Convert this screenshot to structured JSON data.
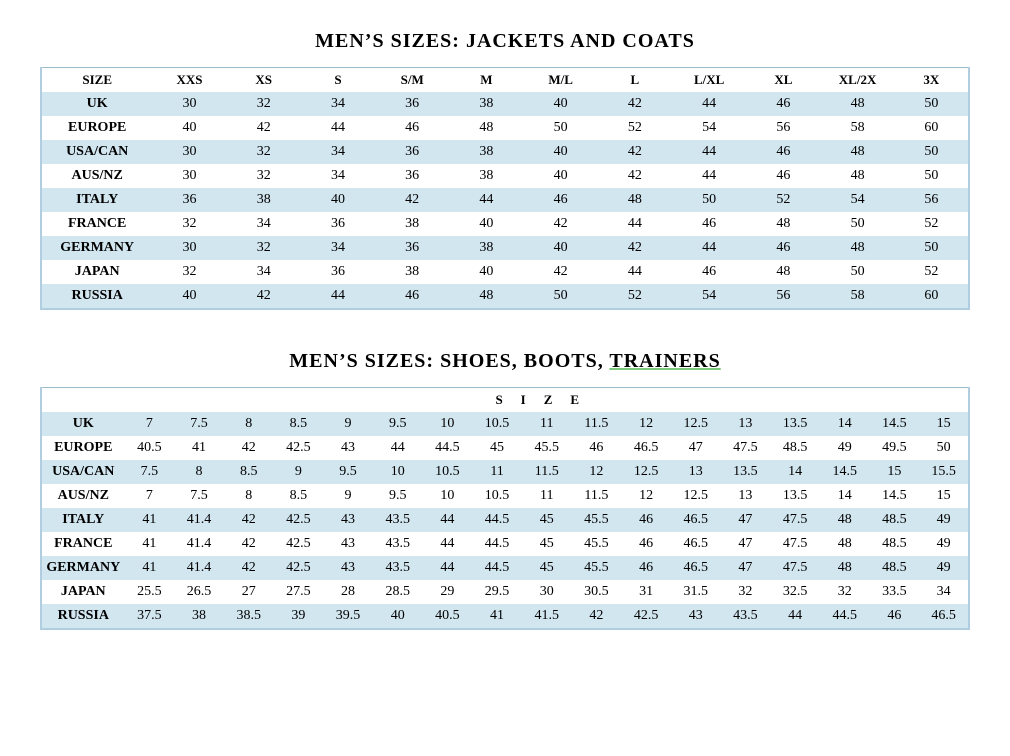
{
  "colors": {
    "stripe": "#d2e6f0",
    "border": "#b0cee0",
    "text": "#000000",
    "background": "#ffffff",
    "underline": "#7cc97c"
  },
  "tables": [
    {
      "title": "MEN’S SIZES: JACKETS AND COATS",
      "underline_from_word": null,
      "header_style": "row",
      "columns": [
        "SIZE",
        "XXS",
        "XS",
        "S",
        "S/M",
        "M",
        "M/L",
        "L",
        "L/XL",
        "XL",
        "XL/2X",
        "3X"
      ],
      "label_width": "12%",
      "rows": [
        {
          "label": "UK",
          "values": [
            "30",
            "32",
            "34",
            "36",
            "38",
            "40",
            "42",
            "44",
            "46",
            "48",
            "50"
          ]
        },
        {
          "label": "EUROPE",
          "values": [
            "40",
            "42",
            "44",
            "46",
            "48",
            "50",
            "52",
            "54",
            "56",
            "58",
            "60"
          ]
        },
        {
          "label": "USA/CAN",
          "values": [
            "30",
            "32",
            "34",
            "36",
            "38",
            "40",
            "42",
            "44",
            "46",
            "48",
            "50"
          ]
        },
        {
          "label": "AUS/NZ",
          "values": [
            "30",
            "32",
            "34",
            "36",
            "38",
            "40",
            "42",
            "44",
            "46",
            "48",
            "50"
          ]
        },
        {
          "label": "ITALY",
          "values": [
            "36",
            "38",
            "40",
            "42",
            "44",
            "46",
            "48",
            "50",
            "52",
            "54",
            "56"
          ]
        },
        {
          "label": "FRANCE",
          "values": [
            "32",
            "34",
            "36",
            "38",
            "40",
            "42",
            "44",
            "46",
            "48",
            "50",
            "52"
          ]
        },
        {
          "label": "GERMANY",
          "values": [
            "30",
            "32",
            "34",
            "36",
            "38",
            "40",
            "42",
            "44",
            "46",
            "48",
            "50"
          ]
        },
        {
          "label": "JAPAN",
          "values": [
            "32",
            "34",
            "36",
            "38",
            "40",
            "42",
            "44",
            "46",
            "48",
            "50",
            "52"
          ]
        },
        {
          "label": "RUSSIA",
          "values": [
            "40",
            "42",
            "44",
            "46",
            "48",
            "50",
            "52",
            "54",
            "56",
            "58",
            "60"
          ]
        }
      ]
    },
    {
      "title": "MEN’S SIZES: SHOES, BOOTS, TRAINERS",
      "underline_from_word": "TRAINERS",
      "header_style": "spanned",
      "span_header_text": "SIZE",
      "columns_count": 17,
      "label_width": "9%",
      "rows": [
        {
          "label": "UK",
          "values": [
            "7",
            "7.5",
            "8",
            "8.5",
            "9",
            "9.5",
            "10",
            "10.5",
            "11",
            "11.5",
            "12",
            "12.5",
            "13",
            "13.5",
            "14",
            "14.5",
            "15"
          ]
        },
        {
          "label": "EUROPE",
          "values": [
            "40.5",
            "41",
            "42",
            "42.5",
            "43",
            "44",
            "44.5",
            "45",
            "45.5",
            "46",
            "46.5",
            "47",
            "47.5",
            "48.5",
            "49",
            "49.5",
            "50"
          ]
        },
        {
          "label": "USA/CAN",
          "values": [
            "7.5",
            "8",
            "8.5",
            "9",
            "9.5",
            "10",
            "10.5",
            "11",
            "11.5",
            "12",
            "12.5",
            "13",
            "13.5",
            "14",
            "14.5",
            "15",
            "15.5"
          ]
        },
        {
          "label": "AUS/NZ",
          "values": [
            "7",
            "7.5",
            "8",
            "8.5",
            "9",
            "9.5",
            "10",
            "10.5",
            "11",
            "11.5",
            "12",
            "12.5",
            "13",
            "13.5",
            "14",
            "14.5",
            "15"
          ]
        },
        {
          "label": "ITALY",
          "values": [
            "41",
            "41.4",
            "42",
            "42.5",
            "43",
            "43.5",
            "44",
            "44.5",
            "45",
            "45.5",
            "46",
            "46.5",
            "47",
            "47.5",
            "48",
            "48.5",
            "49"
          ]
        },
        {
          "label": "FRANCE",
          "values": [
            "41",
            "41.4",
            "42",
            "42.5",
            "43",
            "43.5",
            "44",
            "44.5",
            "45",
            "45.5",
            "46",
            "46.5",
            "47",
            "47.5",
            "48",
            "48.5",
            "49"
          ]
        },
        {
          "label": "GERMANY",
          "values": [
            "41",
            "41.4",
            "42",
            "42.5",
            "43",
            "43.5",
            "44",
            "44.5",
            "45",
            "45.5",
            "46",
            "46.5",
            "47",
            "47.5",
            "48",
            "48.5",
            "49"
          ]
        },
        {
          "label": "JAPAN",
          "values": [
            "25.5",
            "26.5",
            "27",
            "27.5",
            "28",
            "28.5",
            "29",
            "29.5",
            "30",
            "30.5",
            "31",
            "31.5",
            "32",
            "32.5",
            "32",
            "33.5",
            "34"
          ]
        },
        {
          "label": "RUSSIA",
          "values": [
            "37.5",
            "38",
            "38.5",
            "39",
            "39.5",
            "40",
            "40.5",
            "41",
            "41.5",
            "42",
            "42.5",
            "43",
            "43.5",
            "44",
            "44.5",
            "46",
            "46.5"
          ]
        }
      ]
    }
  ]
}
